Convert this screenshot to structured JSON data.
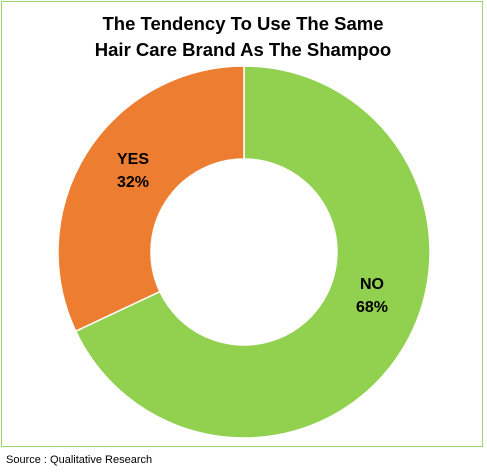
{
  "chart_data": {
    "type": "donut",
    "title_lines": [
      "The Tendency To Use The Same",
      "Hair Care Brand As The Shampoo"
    ],
    "slices": [
      {
        "label": "NO",
        "value": 68,
        "display": "68%",
        "color": "#92d050"
      },
      {
        "label": "YES",
        "value": 32,
        "display": "32%",
        "color": "#ed7d31"
      }
    ],
    "legend": "none"
  },
  "source": "Source : Qualitative Research"
}
